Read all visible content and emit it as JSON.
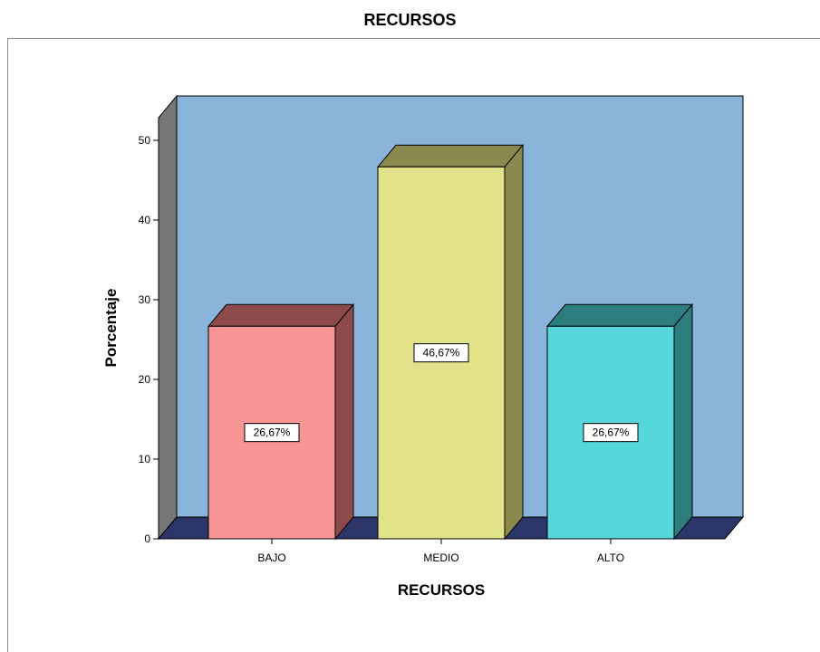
{
  "title": "RECURSOS",
  "chart_data": {
    "type": "bar",
    "title": "RECURSOS",
    "categories": [
      "BAJO",
      "MEDIO",
      "ALTO"
    ],
    "values": [
      26.67,
      46.67,
      26.67
    ],
    "data_labels": [
      "26,67%",
      "46,67%",
      "26,67%"
    ],
    "xlabel": "RECURSOS",
    "ylabel": "Porcentaje",
    "ylim": [
      0,
      50
    ],
    "yticks": [
      0,
      10,
      20,
      30,
      40,
      50
    ],
    "three_d": true,
    "grid": false,
    "colors": {
      "bars_front": [
        "#f79494",
        "#e2e28a",
        "#54d6da"
      ],
      "bars_side": [
        "#8c4a4a",
        "#8b8a4e",
        "#2d7d7f"
      ],
      "back_wall": "#8ab4d9",
      "side_wall": "#767676",
      "floor": "#2c3568"
    }
  }
}
